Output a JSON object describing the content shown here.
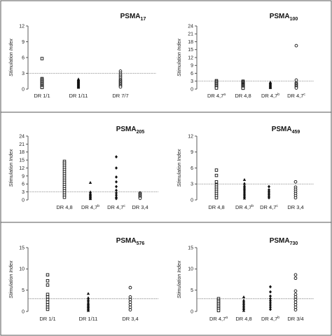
{
  "figure": {
    "frame_color": "#555555",
    "marker_color": "#111111",
    "threshold_color": "#888888"
  },
  "chart_data": [
    {
      "id": "psma17",
      "type": "scatter",
      "title": "PSMA",
      "title_sub": "17",
      "ylabel": "Stimulation Index",
      "ylim": [
        0,
        12
      ],
      "yticks": [
        0,
        3,
        6,
        9,
        12
      ],
      "threshold": 3,
      "grid": false,
      "categories": [
        {
          "label": "DR 1/1",
          "sup": "",
          "marker": "square",
          "values": [
            5.8,
            2.0,
            1.8,
            1.6,
            1.4,
            1.2,
            1.0,
            0.8,
            0.6,
            0.4,
            0.3
          ]
        },
        {
          "label": "DR 1/11",
          "sup": "",
          "marker": "triangle",
          "values": [
            1.9,
            1.8,
            1.7,
            1.6,
            1.5,
            1.4,
            1.3,
            1.2,
            1.1,
            1.0,
            0.9,
            0.8,
            0.7,
            0.6,
            0.5,
            0.4,
            0.3
          ]
        },
        {
          "label": "DR 7/7",
          "sup": "",
          "marker": "circle",
          "values": [
            3.4,
            3.0,
            2.7,
            2.4,
            2.1,
            1.8,
            1.6,
            1.4,
            1.2,
            1.0,
            0.8,
            0.6,
            0.4
          ]
        }
      ]
    },
    {
      "id": "psma100",
      "type": "scatter",
      "title": "PSMA",
      "title_sub": "100",
      "ylabel": "Stimulation Index",
      "ylim": [
        0,
        24
      ],
      "yticks": [
        0,
        3,
        6,
        9,
        12,
        15,
        18,
        21,
        24
      ],
      "threshold": 3,
      "grid": false,
      "categories": [
        {
          "label": "DR 4,7",
          "sup": "a",
          "marker": "square",
          "values": [
            3.2,
            2.8,
            2.4,
            2.0,
            1.6,
            1.2,
            0.8,
            0.4
          ]
        },
        {
          "label": "DR 4,8",
          "sup": "",
          "marker": "square",
          "values": [
            3.0,
            2.7,
            2.4,
            2.1,
            1.8,
            1.5,
            1.2,
            0.9,
            0.6,
            0.3
          ]
        },
        {
          "label": "DR 4,7",
          "sup": "b",
          "marker": "triangle",
          "values": [
            2.6,
            2.3,
            2.0,
            1.7,
            1.4,
            1.1,
            0.8,
            0.5
          ]
        },
        {
          "label": "DR 4,7",
          "sup": "c",
          "marker": "circle",
          "values": [
            16.5,
            3.4,
            2.4,
            2.0,
            1.6,
            1.2,
            0.8,
            0.4
          ]
        }
      ]
    },
    {
      "id": "psma205",
      "type": "scatter",
      "title": "PSMA",
      "title_sub": "205",
      "ylabel": "Stimulation Index",
      "ylim": [
        0,
        24
      ],
      "yticks": [
        0,
        3,
        6,
        9,
        12,
        15,
        18,
        21,
        24
      ],
      "threshold": 3,
      "grid": false,
      "categories": [
        {
          "label": "DR 4,8",
          "sup": "",
          "marker": "square",
          "values": [
            14.5,
            13.8,
            13.0,
            12.2,
            11.4,
            10.6,
            9.8,
            9.0,
            8.2,
            7.4,
            6.6,
            5.8,
            5.0,
            4.2,
            3.4,
            2.6,
            1.8,
            1.0
          ]
        },
        {
          "label": "DR 4,7",
          "sup": "b",
          "marker": "triangle",
          "values": [
            6.5,
            3.0,
            2.4,
            2.0,
            1.6,
            1.2,
            0.8,
            0.4
          ]
        },
        {
          "label": "DR 4,7",
          "sup": "c",
          "marker": "diamond",
          "values": [
            16.2,
            12.0,
            8.6,
            6.8,
            5.0,
            3.6,
            2.6,
            1.8,
            1.0,
            0.5
          ]
        },
        {
          "label": "DR 3,4",
          "sup": "",
          "marker": "circle",
          "values": [
            2.6,
            2.2,
            1.8,
            1.4,
            1.0,
            0.6
          ]
        }
      ]
    },
    {
      "id": "psma459",
      "type": "scatter",
      "title": "PSMA",
      "title_sub": "459",
      "ylabel": "Stimulation Index",
      "ylim": [
        0,
        12
      ],
      "yticks": [
        0,
        3,
        6,
        9,
        12
      ],
      "threshold": 3,
      "grid": false,
      "categories": [
        {
          "label": "DR 4,8",
          "sup": "",
          "marker": "square",
          "values": [
            5.6,
            4.6,
            3.4,
            2.8,
            2.4,
            2.0,
            1.6,
            1.2,
            0.8,
            0.4
          ]
        },
        {
          "label": "DR 4,7",
          "sup": "b",
          "marker": "triangle",
          "values": [
            3.8,
            3.1,
            2.7,
            2.4,
            2.1,
            1.8,
            1.5,
            1.2,
            0.9,
            0.6,
            0.3
          ]
        },
        {
          "label": "DR 4,7",
          "sup": "c",
          "marker": "diamond",
          "values": [
            2.5,
            1.9,
            1.6,
            1.3,
            1.0,
            0.7,
            0.4
          ]
        },
        {
          "label": "DR 3,4",
          "sup": "",
          "marker": "circle",
          "values": [
            3.4,
            2.4,
            2.0,
            1.6,
            1.2,
            0.8,
            0.4
          ]
        }
      ]
    },
    {
      "id": "psma576",
      "type": "scatter",
      "title": "PSMA",
      "title_sub": "576",
      "ylabel": "Stimulation Index",
      "ylim": [
        0,
        15
      ],
      "yticks": [
        0,
        5,
        10,
        15
      ],
      "threshold": 3,
      "grid": false,
      "categories": [
        {
          "label": "DR 1/1",
          "sup": "",
          "marker": "square",
          "values": [
            8.6,
            7.2,
            6.2,
            4.0,
            3.4,
            2.8,
            2.2,
            1.6,
            1.0,
            0.5
          ]
        },
        {
          "label": "DR 1/11",
          "sup": "",
          "marker": "triangle",
          "values": [
            4.2,
            3.2,
            2.8,
            2.4,
            2.0,
            1.7,
            1.4,
            1.1,
            0.8,
            0.5,
            0.2
          ]
        },
        {
          "label": "DR 3,4",
          "sup": "",
          "marker": "circle",
          "values": [
            5.6,
            3.4,
            2.8,
            2.2,
            1.6,
            1.0,
            0.4
          ]
        }
      ]
    },
    {
      "id": "psma730",
      "type": "scatter",
      "title": "PSMA",
      "title_sub": "730",
      "ylabel": "Stimulation Index",
      "ylim": [
        0,
        15
      ],
      "yticks": [
        0,
        5,
        10,
        15
      ],
      "threshold": 3,
      "grid": false,
      "categories": [
        {
          "label": "DR 4,7",
          "sup": "a",
          "marker": "square",
          "values": [
            3.0,
            2.6,
            2.2,
            1.8,
            1.4,
            1.0,
            0.6,
            0.2
          ]
        },
        {
          "label": "DR 4,8",
          "sup": "",
          "marker": "triangle",
          "values": [
            3.4,
            2.6,
            2.2,
            1.8,
            1.4,
            1.0,
            0.6,
            0.2
          ]
        },
        {
          "label": "DR 4,7",
          "sup": "b",
          "marker": "diamond",
          "values": [
            5.8,
            4.6,
            3.6,
            3.0,
            2.5,
            2.0,
            1.5,
            1.0,
            0.5
          ]
        },
        {
          "label": "DR 3/4",
          "sup": "",
          "marker": "circle",
          "values": [
            8.6,
            7.8,
            4.8,
            4.0,
            3.4,
            2.8,
            2.2,
            1.6,
            1.0,
            0.4
          ]
        }
      ]
    }
  ]
}
